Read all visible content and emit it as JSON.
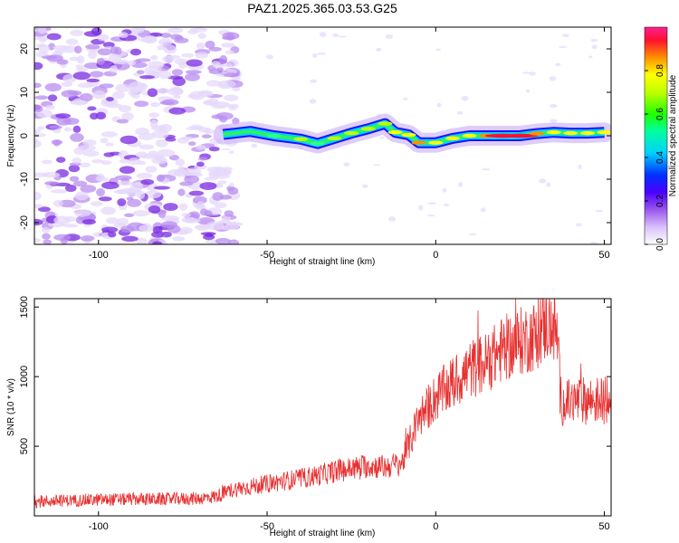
{
  "title": "PAZ1.2025.365.03.53.G25",
  "colors": {
    "snr_line": "#e83030",
    "frame": "#000000",
    "noise_light": "#e6d8fb",
    "noise_mid": "#b98ef0",
    "noise_dark": "#7a2be0"
  },
  "chart_data": [
    {
      "type": "heatmap",
      "title": "PAZ1.2025.365.03.53.G25",
      "xlabel": "Height of straight line (km)",
      "ylabel": "Frequency (Hz)",
      "xlim": [
        -119,
        52
      ],
      "ylim": [
        -25,
        25
      ],
      "xticks": [
        -100,
        -50,
        0,
        50
      ],
      "yticks": [
        -20,
        -10,
        0,
        10,
        20
      ],
      "colorbar": {
        "label": "Normalized spectral amplitude",
        "range": [
          0,
          1
        ],
        "ticks": [
          0.0,
          0.2,
          0.4,
          0.6,
          0.8
        ],
        "stops": [
          "#ffffff",
          "#c7a3f7",
          "#7b1fe8",
          "#1200ff",
          "#00c8ff",
          "#00ff50",
          "#ffff00",
          "#ff8800",
          "#ff0040",
          "#ff2090"
        ]
      },
      "ridge": {
        "description": "dominant frequency trace",
        "x": [
          -63,
          -55,
          -48,
          -40,
          -35,
          -30,
          -25,
          -20,
          -15,
          -12,
          -8,
          -5,
          0,
          5,
          10,
          15,
          20,
          25,
          30,
          35,
          40,
          45,
          50
        ],
        "y": [
          0.3,
          1.0,
          0.0,
          -0.8,
          -1.8,
          -0.6,
          0.6,
          1.6,
          2.8,
          0.8,
          0.2,
          -1.6,
          -1.6,
          -0.6,
          0.0,
          0.0,
          0.0,
          0.0,
          0.5,
          0.8,
          0.6,
          0.6,
          0.8
        ],
        "amplitude": [
          0.35,
          0.5,
          0.55,
          0.6,
          0.55,
          0.6,
          0.6,
          0.6,
          0.6,
          0.75,
          0.75,
          0.8,
          0.75,
          0.7,
          0.72,
          0.78,
          0.9,
          0.9,
          0.8,
          0.75,
          0.72,
          0.75,
          0.75
        ]
      },
      "noise_region": {
        "x_from": -119,
        "x_to": -63,
        "amplitude_range": [
          0.0,
          0.15
        ]
      }
    },
    {
      "type": "line",
      "xlabel": "Height of straight line (km)",
      "ylabel": "SNR (10 * v/v)",
      "xlim": [
        -119,
        52
      ],
      "ylim": [
        0,
        1560
      ],
      "xticks": [
        -100,
        -50,
        0,
        50
      ],
      "yticks": [
        500,
        1000,
        1500
      ],
      "series": [
        {
          "name": "SNR",
          "x": [
            -119,
            -110,
            -100,
            -90,
            -80,
            -70,
            -65,
            -60,
            -55,
            -50,
            -45,
            -40,
            -35,
            -30,
            -25,
            -20,
            -15,
            -10,
            -5,
            0,
            5,
            10,
            15,
            20,
            25,
            30,
            33,
            35,
            36,
            37,
            38,
            40,
            45,
            50,
            52
          ],
          "y": [
            100,
            110,
            115,
            120,
            120,
            125,
            140,
            190,
            210,
            230,
            250,
            270,
            290,
            320,
            340,
            360,
            350,
            380,
            700,
            850,
            950,
            1050,
            1100,
            1200,
            1250,
            1300,
            1380,
            1350,
            1300,
            850,
            800,
            820,
            830,
            830,
            820
          ]
        }
      ]
    }
  ]
}
